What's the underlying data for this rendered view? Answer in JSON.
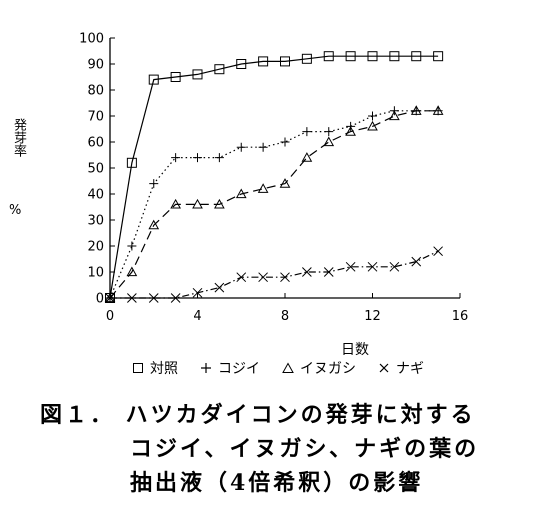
{
  "chart_data": {
    "type": "line",
    "title": "",
    "xlabel": "日数",
    "ylabel": "発芽率",
    "ylabel_unit": "%",
    "xlim": [
      0,
      16
    ],
    "ylim": [
      0,
      100
    ],
    "xticks": [
      0,
      4,
      8,
      12,
      16
    ],
    "yticks": [
      0,
      10,
      20,
      30,
      40,
      50,
      60,
      70,
      80,
      90,
      100
    ],
    "grid": false,
    "legend_position": "bottom",
    "series": [
      {
        "name": "対照",
        "marker": "square",
        "line": "solid",
        "x": [
          0,
          1,
          2,
          3,
          4,
          5,
          6,
          7,
          8,
          9,
          10,
          11,
          12,
          13,
          14,
          15
        ],
        "y": [
          0,
          52,
          84,
          85,
          86,
          88,
          90,
          91,
          91,
          92,
          93,
          93,
          93,
          93,
          93,
          93
        ]
      },
      {
        "name": "コジイ",
        "marker": "plus",
        "line": "dotted",
        "x": [
          0,
          1,
          2,
          3,
          4,
          5,
          6,
          7,
          8,
          9,
          10,
          11,
          12,
          13,
          14,
          15
        ],
        "y": [
          0,
          20,
          44,
          54,
          54,
          54,
          58,
          58,
          60,
          64,
          64,
          66,
          70,
          72,
          72,
          72
        ]
      },
      {
        "name": "イヌガシ",
        "marker": "triangle",
        "line": "dashed",
        "x": [
          0,
          1,
          2,
          3,
          4,
          5,
          6,
          7,
          8,
          9,
          10,
          11,
          12,
          13,
          14,
          15
        ],
        "y": [
          0,
          10,
          28,
          36,
          36,
          36,
          40,
          42,
          44,
          54,
          60,
          64,
          66,
          70,
          72,
          72
        ]
      },
      {
        "name": "ナギ",
        "marker": "cross",
        "line": "dashdot",
        "x": [
          0,
          1,
          2,
          3,
          4,
          5,
          6,
          7,
          8,
          9,
          10,
          11,
          12,
          13,
          14,
          15
        ],
        "y": [
          0,
          0,
          0,
          0,
          2,
          4,
          8,
          8,
          8,
          10,
          10,
          12,
          12,
          12,
          14,
          18
        ]
      }
    ]
  },
  "caption": {
    "line1": "図１． ハツカダイコンの発芽に対する",
    "line2": "コジイ、イヌガシ、ナギの葉の",
    "line3": "抽出液（4倍希釈）の影響"
  }
}
